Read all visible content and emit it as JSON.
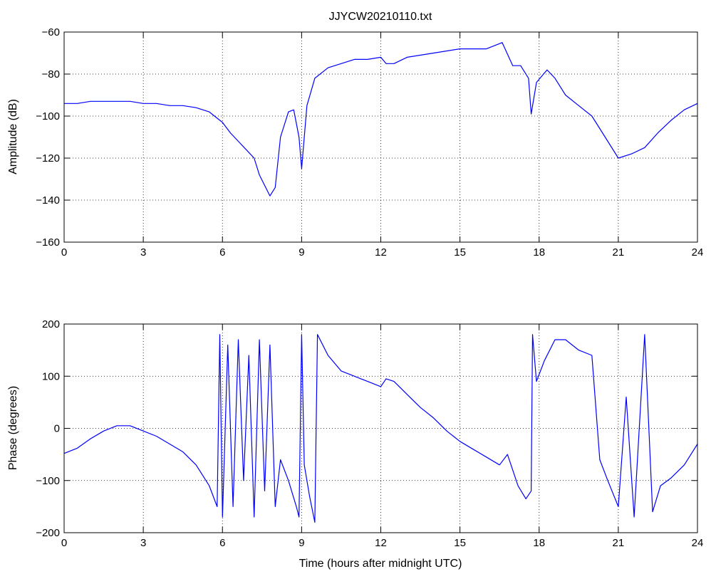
{
  "colors": {
    "series": "#0000ff",
    "axes": "#000000",
    "background": "#ffffff"
  },
  "chart_data": [
    {
      "type": "line",
      "title": "JJYCW20210110.txt",
      "xlabel": "",
      "ylabel": "Amplitude (dB)",
      "xlim": [
        0,
        24
      ],
      "ylim": [
        -160,
        -60
      ],
      "xticks": [
        0,
        3,
        6,
        9,
        12,
        15,
        18,
        21,
        24
      ],
      "yticks": [
        -60,
        -80,
        -100,
        -120,
        -140,
        -160
      ],
      "xtick_labels": [
        "0",
        "3",
        "6",
        "9",
        "12",
        "15",
        "18",
        "21",
        "24"
      ],
      "ytick_labels": [
        "−60",
        "−80",
        "−100",
        "−120",
        "−140",
        "−160"
      ],
      "grid": true,
      "series": [
        {
          "x": [
            0,
            0.5,
            1,
            1.5,
            2,
            2.5,
            3,
            3.5,
            4,
            4.5,
            5,
            5.5,
            6,
            6.3,
            6.6,
            6.9,
            7.2,
            7.4,
            7.6,
            7.8,
            8.0,
            8.2,
            8.5,
            8.7,
            8.9,
            9.0,
            9.2,
            9.5,
            10,
            10.5,
            11,
            11.5,
            12,
            12.2,
            12.5,
            13,
            14,
            15,
            16,
            16.6,
            17.0,
            17.3,
            17.6,
            17.7,
            17.9,
            18.3,
            18.6,
            19.0,
            19.5,
            20.0,
            20.5,
            21.0,
            21.5,
            22.0,
            22.5,
            23.0,
            23.5,
            24
          ],
          "y": [
            -94,
            -94,
            -93,
            -93,
            -93,
            -93,
            -94,
            -94,
            -95,
            -95,
            -96,
            -98,
            -103,
            -108,
            -112,
            -116,
            -120,
            -128,
            -133,
            -138,
            -134,
            -110,
            -98,
            -97,
            -110,
            -125,
            -95,
            -82,
            -77,
            -75,
            -73,
            -73,
            -72,
            -75,
            -75,
            -72,
            -70,
            -68,
            -68,
            -65,
            -76,
            -76,
            -82,
            -99,
            -84,
            -78,
            -82,
            -90,
            -95,
            -100,
            -110,
            -120,
            -118,
            -115,
            -108,
            -102,
            -97,
            -94
          ]
        }
      ]
    },
    {
      "type": "line",
      "title": "",
      "xlabel": "Time (hours after midnight UTC)",
      "ylabel": "Phase (degrees)",
      "xlim": [
        0,
        24
      ],
      "ylim": [
        -200,
        200
      ],
      "xticks": [
        0,
        3,
        6,
        9,
        12,
        15,
        18,
        21,
        24
      ],
      "yticks": [
        200,
        100,
        0,
        -100,
        -200
      ],
      "xtick_labels": [
        "0",
        "3",
        "6",
        "9",
        "12",
        "15",
        "18",
        "21",
        "24"
      ],
      "ytick_labels": [
        "200",
        "100",
        "0",
        "−100",
        "−200"
      ],
      "grid": true,
      "series": [
        {
          "x": [
            0,
            0.5,
            1,
            1.5,
            2,
            2.5,
            3,
            3.5,
            4,
            4.5,
            5,
            5.5,
            5.8,
            5.9,
            6.0,
            6.2,
            6.4,
            6.6,
            6.8,
            7.0,
            7.2,
            7.4,
            7.6,
            7.8,
            8.0,
            8.2,
            8.5,
            8.8,
            8.9,
            9.0,
            9.1,
            9.3,
            9.5,
            9.6,
            10,
            10.5,
            11,
            11.5,
            12,
            12.2,
            12.5,
            13,
            13.5,
            14,
            14.5,
            15,
            15.5,
            16,
            16.5,
            16.8,
            17.0,
            17.2,
            17.5,
            17.7,
            17.75,
            17.9,
            18.2,
            18.6,
            19.0,
            19.5,
            20.0,
            20.3,
            20.6,
            21.0,
            21.3,
            21.6,
            22.0,
            22.3,
            22.6,
            23.0,
            23.5,
            24
          ],
          "y": [
            -48,
            -38,
            -20,
            -5,
            5,
            5,
            -5,
            -15,
            -30,
            -45,
            -70,
            -110,
            -150,
            180,
            -170,
            160,
            -150,
            170,
            -100,
            140,
            -170,
            170,
            -120,
            160,
            -150,
            -60,
            -100,
            -150,
            -170,
            180,
            -70,
            -130,
            -180,
            180,
            140,
            110,
            100,
            90,
            80,
            95,
            90,
            65,
            40,
            20,
            -5,
            -25,
            -40,
            -55,
            -70,
            -50,
            -80,
            -110,
            -135,
            -120,
            180,
            90,
            130,
            170,
            170,
            150,
            140,
            -60,
            -100,
            -150,
            60,
            -170,
            180,
            -160,
            -110,
            -95,
            -70,
            -30
          ]
        }
      ]
    }
  ]
}
